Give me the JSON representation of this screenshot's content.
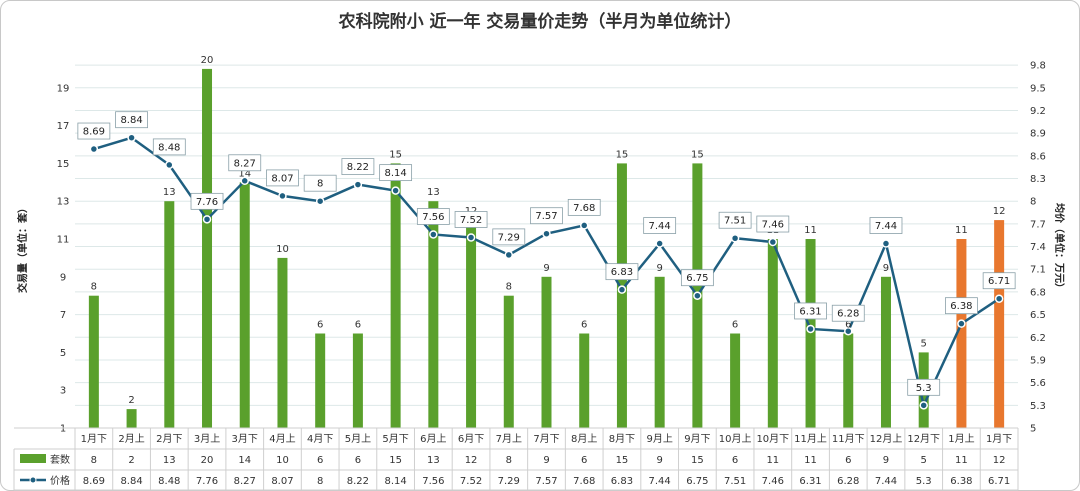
{
  "chart_data": {
    "type": "bar+line",
    "title": "农科院附小 近一年 交易量价走势（半月为单位统计）",
    "ylabel_left": "交易量（单位：套）",
    "ylabel_right": "均价（单位：万元）",
    "categories": [
      "1月下",
      "2月上",
      "2月下",
      "3月上",
      "3月下",
      "4月上",
      "4月下",
      "5月上",
      "5月下",
      "6月上",
      "6月下",
      "7月上",
      "7月下",
      "8月上",
      "8月下",
      "9月上",
      "9月下",
      "10月上",
      "10月下",
      "11月上",
      "11月下",
      "12月上",
      "12月下",
      "1月上",
      "1月下"
    ],
    "left_axis": {
      "min": 1,
      "max": 21,
      "ticks": [
        1,
        3,
        5,
        7,
        9,
        11,
        13,
        15,
        17,
        19
      ]
    },
    "right_axis": {
      "min": 5,
      "max": 10,
      "ticks": [
        5,
        5.3,
        5.6,
        5.9,
        6.2,
        6.5,
        6.8,
        7.1,
        7.4,
        7.7,
        8,
        8.3,
        8.6,
        8.9,
        9.2,
        9.5,
        9.8
      ]
    },
    "series": [
      {
        "name": "套数",
        "type": "bar",
        "axis": "left",
        "values": [
          8,
          2,
          13,
          20,
          14,
          10,
          6,
          6,
          15,
          13,
          12,
          8,
          9,
          6,
          15,
          9,
          15,
          6,
          11,
          11,
          6,
          9,
          5,
          11,
          12
        ],
        "colors": [
          "#5aa02c",
          "#5aa02c",
          "#5aa02c",
          "#5aa02c",
          "#5aa02c",
          "#5aa02c",
          "#5aa02c",
          "#5aa02c",
          "#5aa02c",
          "#5aa02c",
          "#5aa02c",
          "#5aa02c",
          "#5aa02c",
          "#5aa02c",
          "#5aa02c",
          "#5aa02c",
          "#5aa02c",
          "#5aa02c",
          "#5aa02c",
          "#5aa02c",
          "#5aa02c",
          "#5aa02c",
          "#5aa02c",
          "#e8772e",
          "#e8772e"
        ]
      },
      {
        "name": "价格",
        "type": "line",
        "axis": "right",
        "color": "#1f5f80",
        "values": [
          8.69,
          8.84,
          8.48,
          7.76,
          8.27,
          8.07,
          8,
          8.22,
          8.14,
          7.56,
          7.52,
          7.29,
          7.57,
          7.68,
          6.83,
          7.44,
          6.75,
          7.51,
          7.46,
          6.31,
          6.28,
          7.44,
          5.3,
          6.38,
          6.71
        ]
      }
    ],
    "legend": "bottom-table",
    "grid": true
  }
}
